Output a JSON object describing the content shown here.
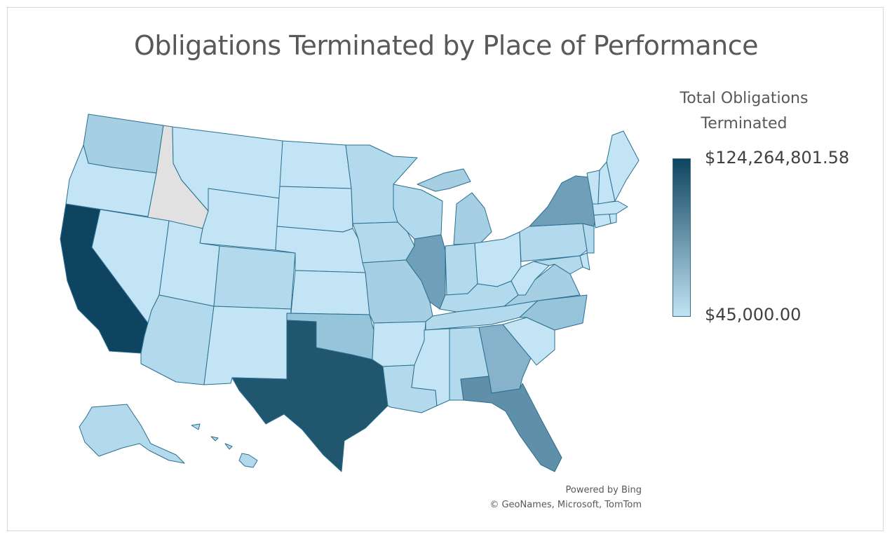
{
  "title": "Obligations Terminated by Place of Performance",
  "legend": {
    "title_line1": "Total Obligations",
    "title_line2": "Terminated",
    "max_label": "$124,264,801.58",
    "min_label": "$45,000.00",
    "max_color": "#0e4460",
    "min_color": "#c2e4f4",
    "no_data_color": "#e1e1e1"
  },
  "credits": {
    "line1": "Powered by Bing",
    "line2": "© GeoNames, Microsoft, TomTom"
  },
  "map_data": {
    "type": "choropleth",
    "region": "United States",
    "states": [
      {
        "name": "California",
        "level": 1.0
      },
      {
        "name": "Texas",
        "level": 0.82
      },
      {
        "name": "Florida",
        "level": 0.55
      },
      {
        "name": "New York",
        "level": 0.5
      },
      {
        "name": "Illinois",
        "level": 0.38
      },
      {
        "name": "Georgia",
        "level": 0.32
      },
      {
        "name": "Washington",
        "level": 0.22
      },
      {
        "name": "Michigan",
        "level": 0.18
      },
      {
        "name": "Oklahoma",
        "level": 0.18
      },
      {
        "name": "Virginia",
        "level": 0.16
      },
      {
        "name": "North Carolina",
        "level": 0.16
      },
      {
        "name": "Idaho",
        "level": null
      }
    ]
  }
}
